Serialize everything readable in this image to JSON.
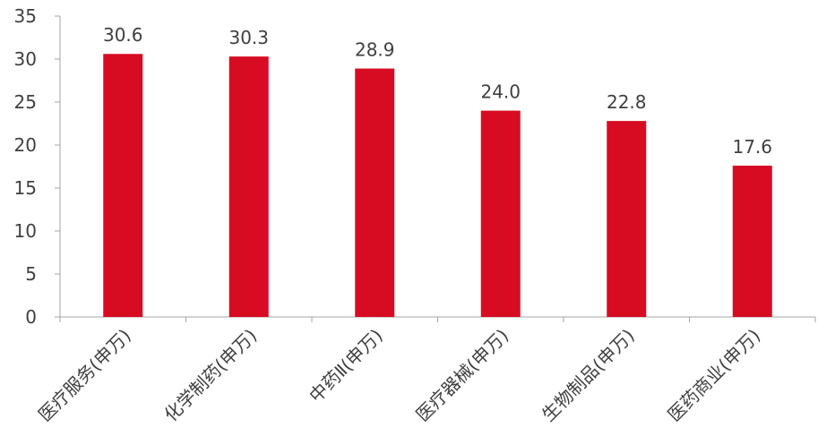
{
  "chart_data": {
    "type": "bar",
    "categories": [
      "医疗服务(申万)",
      "化学制药(申万)",
      "中药Ⅱ(申万)",
      "医疗器械(申万)",
      "生物制品(申万)",
      "医药商业(申万)"
    ],
    "values": [
      30.6,
      30.3,
      28.9,
      24.0,
      22.8,
      17.6
    ],
    "data_labels": [
      "30.6",
      "30.3",
      "28.9",
      "24.0",
      "22.8",
      "17.6"
    ],
    "title": "",
    "xlabel": "",
    "ylabel": "",
    "ylim": [
      0,
      35
    ],
    "yticks": [
      "0",
      "5",
      "10",
      "15",
      "20",
      "25",
      "30",
      "35"
    ],
    "grid": false,
    "legend": "none",
    "bar_color": "#D70C22",
    "axis_color": "#A6A6A6",
    "text_color": "#404040"
  }
}
